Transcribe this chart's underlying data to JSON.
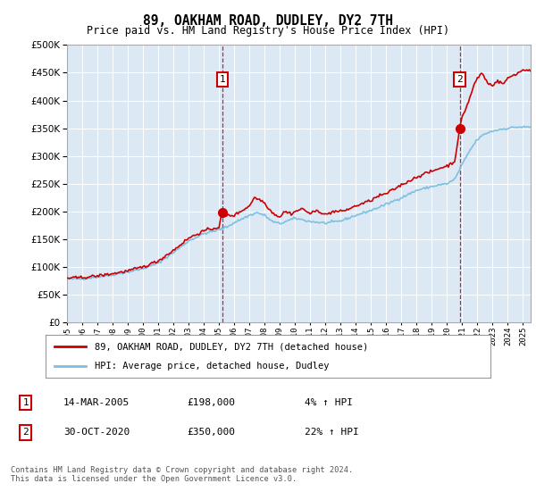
{
  "title": "89, OAKHAM ROAD, DUDLEY, DY2 7TH",
  "subtitle": "Price paid vs. HM Land Registry's House Price Index (HPI)",
  "plot_bg_color": "#dce9f5",
  "ylim": [
    0,
    500000
  ],
  "yticks": [
    0,
    50000,
    100000,
    150000,
    200000,
    250000,
    300000,
    350000,
    400000,
    450000,
    500000
  ],
  "purchase1_x": 2005.21,
  "purchase1_y": 198000,
  "purchase2_x": 2020.83,
  "purchase2_y": 350000,
  "legend_line1": "89, OAKHAM ROAD, DUDLEY, DY2 7TH (detached house)",
  "legend_line2": "HPI: Average price, detached house, Dudley",
  "table_row1_num": "1",
  "table_row1_date": "14-MAR-2005",
  "table_row1_price": "£198,000",
  "table_row1_hpi": "4% ↑ HPI",
  "table_row2_num": "2",
  "table_row2_date": "30-OCT-2020",
  "table_row2_price": "£350,000",
  "table_row2_hpi": "22% ↑ HPI",
  "footer": "Contains HM Land Registry data © Crown copyright and database right 2024.\nThis data is licensed under the Open Government Licence v3.0.",
  "hpi_color": "#7fbfdf",
  "price_color": "#cc0000",
  "xlim_min": 1995.0,
  "xlim_max": 2025.5
}
